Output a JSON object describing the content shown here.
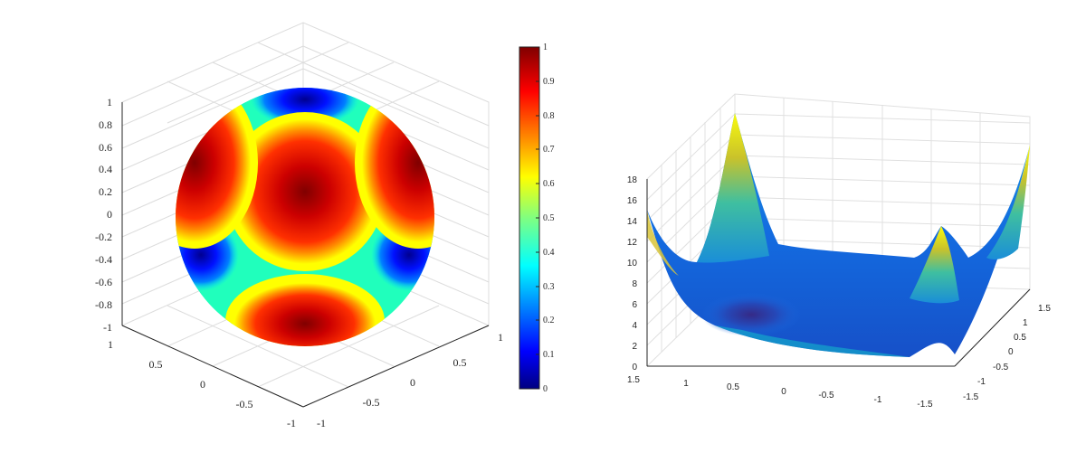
{
  "chart_data": [
    {
      "type": "surface",
      "description_shape": "unit sphere colored by scalar field",
      "axes": {
        "z_ticks": [
          "-1",
          "-0.8",
          "-0.6",
          "-0.4",
          "-0.2",
          "0",
          "0.2",
          "0.4",
          "0.6",
          "0.8",
          "1"
        ],
        "x_ticks": [
          "1",
          "0.5",
          "0",
          "-0.5",
          "-1"
        ],
        "y_ticks": [
          "-1",
          "-0.5",
          "0",
          "0.5",
          "1"
        ],
        "xlim": [
          -1,
          1
        ],
        "ylim": [
          -1,
          1
        ],
        "zlim": [
          -1,
          1
        ]
      },
      "colorbar": {
        "colormap": "jet",
        "ticks": [
          "0",
          "0.1",
          "0.2",
          "0.3",
          "0.4",
          "0.5",
          "0.6",
          "0.7",
          "0.8",
          "0.9",
          "1"
        ],
        "range": [
          0,
          1
        ]
      },
      "grid": true
    },
    {
      "type": "surface",
      "description_shape": "height surface with four corner peaks",
      "axes": {
        "z_ticks": [
          "0",
          "2",
          "4",
          "6",
          "8",
          "10",
          "12",
          "14",
          "16",
          "18"
        ],
        "x_ticks": [
          "1.5",
          "1",
          "0.5",
          "0",
          "-0.5",
          "-1",
          "-1.5"
        ],
        "y_ticks": [
          "-1.5",
          "-1",
          "-0.5",
          "0",
          "0.5",
          "1",
          "1.5"
        ],
        "xlim": [
          -1.5,
          1.5
        ],
        "ylim": [
          -1.5,
          1.5
        ],
        "zlim": [
          0,
          18
        ]
      },
      "colormap": "parula",
      "grid": true
    }
  ],
  "colors": {
    "jet_dark_red": "#800000",
    "jet_red": "#ff0000",
    "jet_orange": "#ff8000",
    "jet_yellow": "#ffff00",
    "jet_cyan": "#00ffff",
    "jet_blue": "#0000ff",
    "jet_dark_blue": "#000080",
    "parula_dark": "#352a87",
    "parula_blue": "#0f5cdd",
    "parula_teal": "#14b5ca",
    "parula_yellow": "#f9fb0e"
  }
}
